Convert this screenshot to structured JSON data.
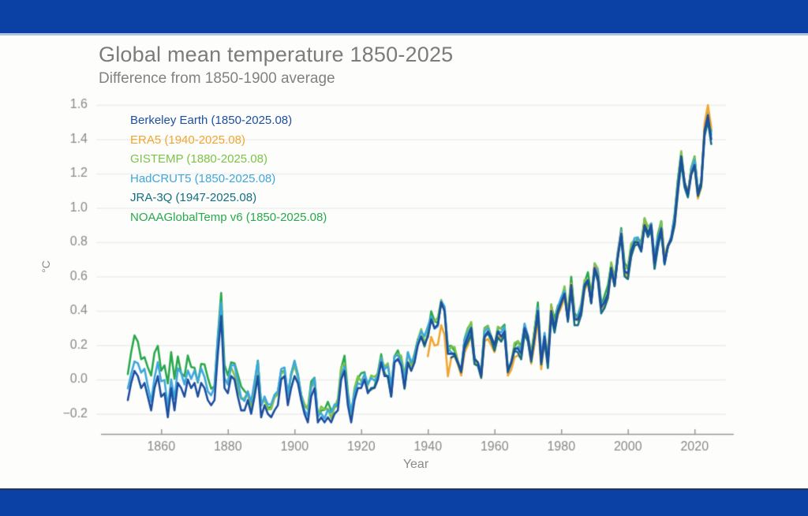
{
  "page": {
    "background": "#fdfdfb",
    "top_bar_color": "#0b41a5",
    "top_bar_accent_color": "#aec3e3",
    "bottom_bar_color": "#0b41a5",
    "bottom_bar_accent_color": "#24355c"
  },
  "header": {
    "title": "Global mean temperature 1850-2025",
    "subtitle": "Difference from 1850-1900 average"
  },
  "chart_data": {
    "type": "line",
    "title": "Global mean temperature 1850-2025",
    "subtitle": "Difference from 1850-1900 average",
    "xlabel": "Year",
    "ylabel": "°C",
    "x_ticks": [
      1860,
      1880,
      1900,
      1920,
      1940,
      1960,
      1980,
      2000,
      2020
    ],
    "y_ticks": [
      1.6,
      1.4,
      1.2,
      1.0,
      0.8,
      0.6,
      0.4,
      0.2,
      0.0,
      -0.2
    ],
    "xlim": [
      1842,
      2032
    ],
    "ylim": [
      -0.32,
      1.66
    ],
    "grid": "horizontal",
    "grid_color": "#ededeb",
    "axis_color": "#999999",
    "tick_text_color": "#8a8a8a",
    "legend_position": "top-left-inside",
    "years_start": 1850,
    "years_end": 2025,
    "base_values": [
      -0.12,
      -0.02,
      0.05,
      0.02,
      -0.05,
      -0.02,
      -0.1,
      -0.18,
      -0.05,
      0.02,
      -0.1,
      -0.08,
      -0.22,
      -0.05,
      -0.18,
      -0.02,
      -0.05,
      -0.1,
      0.0,
      -0.05,
      -0.02,
      -0.1,
      -0.02,
      -0.05,
      -0.12,
      -0.15,
      -0.12,
      0.15,
      0.37,
      -0.05,
      -0.08,
      0.02,
      0.0,
      -0.1,
      -0.18,
      -0.18,
      -0.12,
      -0.2,
      -0.1,
      0.02,
      -0.22,
      -0.15,
      -0.2,
      -0.22,
      -0.18,
      -0.15,
      0.0,
      0.02,
      -0.15,
      -0.05,
      0.02,
      -0.02,
      -0.12,
      -0.2,
      -0.25,
      -0.1,
      -0.05,
      -0.25,
      -0.22,
      -0.25,
      -0.22,
      -0.25,
      -0.2,
      -0.18,
      0.0,
      0.05,
      -0.15,
      -0.25,
      -0.12,
      -0.05,
      -0.05,
      0.0,
      -0.08,
      -0.05,
      -0.05,
      0.0,
      0.1,
      0.02,
      0.02,
      -0.1,
      0.1,
      0.12,
      0.08,
      -0.05,
      0.1,
      0.05,
      0.1,
      0.2,
      0.25,
      0.2,
      0.25,
      0.35,
      0.3,
      0.32,
      0.45,
      0.4,
      0.15,
      0.15,
      0.15,
      0.1,
      0.05,
      0.2,
      0.25,
      0.3,
      0.12,
      0.1,
      0.02,
      0.25,
      0.28,
      0.25,
      0.2,
      0.28,
      0.25,
      0.28,
      0.05,
      0.1,
      0.18,
      0.18,
      0.15,
      0.3,
      0.25,
      0.12,
      0.25,
      0.4,
      0.1,
      0.25,
      0.1,
      0.4,
      0.3,
      0.4,
      0.45,
      0.5,
      0.35,
      0.55,
      0.35,
      0.35,
      0.4,
      0.55,
      0.58,
      0.45,
      0.65,
      0.6,
      0.42,
      0.45,
      0.5,
      0.65,
      0.55,
      0.72,
      0.85,
      0.63,
      0.62,
      0.75,
      0.8,
      0.8,
      0.75,
      0.9,
      0.85,
      0.9,
      0.68,
      0.8,
      0.88,
      0.68,
      0.78,
      0.82,
      0.92,
      1.12,
      1.3,
      1.15,
      1.08,
      1.2,
      1.25,
      1.08,
      1.15,
      1.45,
      1.54,
      1.4
    ],
    "series": [
      {
        "name": "Berkeley Earth",
        "label": "Berkeley Earth (1850-2025.08)",
        "color": "#1d4f9f",
        "start": 1850,
        "end": 2025,
        "offsets": [
          {
            "from": 1850,
            "to": 2025,
            "o": 0
          }
        ],
        "jitter": {
          "amp": 0,
          "freq": 0,
          "phase": 0
        }
      },
      {
        "name": "ERA5",
        "label": "ERA5 (1940-2025.08)",
        "color": "#f0a732",
        "start": 1940,
        "end": 2025,
        "offsets": [
          {
            "from": 1940,
            "to": 1946,
            "o": -0.12
          },
          {
            "from": 1947,
            "to": 1975,
            "o": -0.03
          },
          {
            "from": 1976,
            "to": 2022,
            "o": -0.01
          },
          {
            "from": 2023,
            "to": 2025,
            "o": 0.05
          }
        ],
        "jitter": {
          "amp": 0.02,
          "freq": 0.9,
          "phase": 1.0
        }
      },
      {
        "name": "GISTEMP",
        "label": "GISTEMP (1880-2025.08)",
        "color": "#7dc24b",
        "start": 1880,
        "end": 2025,
        "offsets": [
          {
            "from": 1880,
            "to": 1935,
            "o": 0.05
          },
          {
            "from": 1936,
            "to": 2025,
            "o": 0.02
          }
        ],
        "jitter": {
          "amp": 0.025,
          "freq": 1.3,
          "phase": 2.0
        }
      },
      {
        "name": "HadCRUT5",
        "label": "HadCRUT5 (1850-2025.08)",
        "color": "#3fa7dc",
        "start": 1850,
        "end": 2025,
        "offsets": [
          {
            "from": 1850,
            "to": 1900,
            "o": 0.07
          },
          {
            "from": 1901,
            "to": 1940,
            "o": 0.04
          },
          {
            "from": 1941,
            "to": 2025,
            "o": 0.01
          }
        ],
        "jitter": {
          "amp": 0.02,
          "freq": 1.1,
          "phase": 4.0
        }
      },
      {
        "name": "JRA-3Q",
        "label": "JRA-3Q (1947-2025.08)",
        "color": "#136f83",
        "start": 1947,
        "end": 2025,
        "offsets": [
          {
            "from": 1947,
            "to": 2025,
            "o": -0.02
          }
        ],
        "jitter": {
          "amp": 0.015,
          "freq": 0.8,
          "phase": 0.5
        }
      },
      {
        "name": "NOAAGlobalTemp v6",
        "label": "NOAAGlobalTemp v6 (1850-2025.08)",
        "color": "#2aa84e",
        "start": 1850,
        "end": 2025,
        "offsets": [
          {
            "from": 1850,
            "to": 1865,
            "o": 0.18
          },
          {
            "from": 1866,
            "to": 1885,
            "o": 0.11
          },
          {
            "from": 1886,
            "to": 1920,
            "o": 0.06
          },
          {
            "from": 1921,
            "to": 2025,
            "o": 0.02
          }
        ],
        "jitter": {
          "amp": 0.03,
          "freq": 1.2,
          "phase": 3.0
        }
      }
    ],
    "draw_order": [
      5,
      2,
      3,
      1,
      4,
      0
    ]
  }
}
